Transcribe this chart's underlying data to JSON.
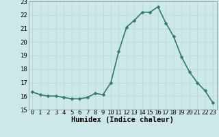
{
  "x": [
    0,
    1,
    2,
    3,
    4,
    5,
    6,
    7,
    8,
    9,
    10,
    11,
    12,
    13,
    14,
    15,
    16,
    17,
    18,
    19,
    20,
    21,
    22,
    23
  ],
  "y": [
    16.3,
    16.1,
    16.0,
    16.0,
    15.9,
    15.8,
    15.8,
    15.9,
    16.2,
    16.1,
    17.0,
    19.3,
    21.1,
    21.6,
    22.2,
    22.2,
    22.6,
    21.4,
    20.4,
    18.9,
    17.8,
    17.0,
    16.4,
    15.5
  ],
  "line_color": "#2e7b6e",
  "marker": "D",
  "marker_size": 2.5,
  "line_width": 1.2,
  "bg_color": "#cce8e8",
  "grid_color": "#b8d4d4",
  "xlabel": "Humidex (Indice chaleur)",
  "xlim": [
    -0.5,
    23.5
  ],
  "ylim": [
    15,
    23
  ],
  "yticks": [
    15,
    16,
    17,
    18,
    19,
    20,
    21,
    22,
    23
  ],
  "xticks": [
    0,
    1,
    2,
    3,
    4,
    5,
    6,
    7,
    8,
    9,
    10,
    11,
    12,
    13,
    14,
    15,
    16,
    17,
    18,
    19,
    20,
    21,
    22,
    23
  ],
  "tick_label_fontsize": 6.5,
  "xlabel_fontsize": 7.5,
  "xlabel_bold": true
}
